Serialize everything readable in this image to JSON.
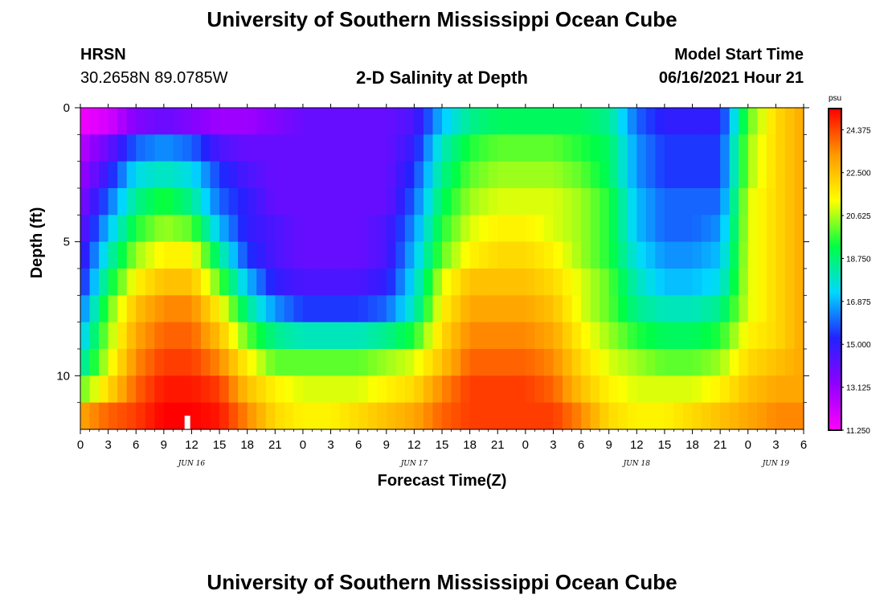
{
  "header": {
    "title": "University of Southern Mississippi Ocean Cube",
    "station_name": "HRSN",
    "coordinates": "30.2658N  89.0785W",
    "plot_title": "2-D Salinity at Depth",
    "model_start_label": "Model Start Time",
    "model_start_value": "06/16/2021 Hour 21"
  },
  "footer": {
    "title": "University of Southern Mississippi Ocean Cube"
  },
  "chart_data": {
    "type": "heatmap",
    "title": "2-D Salinity at Depth",
    "xlabel": "Forecast Time(Z)",
    "ylabel": "Depth (ft)",
    "x_unit": "hours since JUN 16 00Z",
    "xlim": [
      0,
      78
    ],
    "ylim": [
      0,
      12
    ],
    "y_inverted": true,
    "x_tick_values": [
      0,
      3,
      6,
      9,
      12,
      15,
      18,
      21,
      24,
      27,
      30,
      33,
      36,
      39,
      42,
      45,
      48,
      51,
      54,
      57,
      60,
      63,
      66,
      69,
      72,
      75,
      78
    ],
    "x_tick_labels": [
      "0",
      "3",
      "6",
      "9",
      "12",
      "15",
      "18",
      "21",
      "0",
      "3",
      "6",
      "9",
      "12",
      "15",
      "18",
      "21",
      "0",
      "3",
      "6",
      "9",
      "12",
      "15",
      "18",
      "21",
      "0",
      "3",
      "6"
    ],
    "y_tick_values": [
      0,
      5,
      10
    ],
    "y_tick_labels": [
      "0",
      "5",
      "10"
    ],
    "date_labels": [
      {
        "x": 12,
        "label": "JUN 16"
      },
      {
        "x": 36,
        "label": "JUN 17"
      },
      {
        "x": 60,
        "label": "JUN 18"
      },
      {
        "x": 75,
        "label": "JUN 19"
      }
    ],
    "now_marker_x": 11.5,
    "colorbar": {
      "unit": "psu",
      "min": 11.25,
      "max": 25.3,
      "labels": [
        "24.375",
        "22.500",
        "20.625",
        "18.750",
        "16.875",
        "15.000",
        "13.125",
        "11.250"
      ],
      "label_values": [
        24.375,
        22.5,
        20.625,
        18.75,
        16.875,
        15.0,
        13.125,
        11.25
      ],
      "colors": [
        "#ff00ff",
        "#9000ff",
        "#2222ff",
        "#00d8ff",
        "#00ff44",
        "#ffff00",
        "#ff9800",
        "#ff0000"
      ]
    },
    "depth_layers_ft": [
      0.5,
      1.5,
      2.5,
      3.5,
      4.5,
      5.5,
      6.5,
      7.5,
      8.5,
      9.5,
      10.5,
      11.5
    ],
    "key_times_h": [
      0,
      3,
      6,
      9,
      12,
      15,
      18,
      21,
      24,
      27,
      30,
      33,
      36,
      39,
      42,
      45,
      48,
      51,
      54,
      57,
      60,
      63,
      66,
      69,
      72,
      75,
      78
    ],
    "salinity_psu": [
      [
        11.5,
        12.0,
        13.5,
        14.0,
        13.5,
        13.0,
        13.0,
        13.5,
        14.0,
        14.0,
        14.0,
        14.0,
        14.5,
        17.0,
        18.5,
        19.0,
        19.0,
        19.0,
        19.0,
        18.5,
        16.0,
        15.0,
        15.0,
        15.0,
        20.0,
        22.0,
        23.0
      ],
      [
        12.5,
        14.0,
        16.0,
        16.5,
        16.0,
        14.5,
        14.0,
        14.0,
        14.0,
        14.0,
        14.0,
        14.0,
        15.0,
        18.0,
        19.5,
        20.0,
        20.0,
        20.0,
        19.5,
        19.0,
        16.5,
        15.5,
        15.5,
        15.5,
        20.5,
        22.0,
        23.0
      ],
      [
        13.0,
        15.0,
        17.5,
        18.0,
        17.5,
        15.5,
        14.5,
        14.0,
        14.0,
        14.0,
        14.0,
        14.0,
        15.5,
        18.5,
        20.0,
        20.5,
        20.5,
        20.5,
        20.0,
        19.0,
        16.5,
        15.5,
        15.5,
        15.5,
        20.5,
        22.0,
        23.0
      ],
      [
        13.5,
        16.0,
        18.5,
        19.5,
        18.5,
        16.0,
        15.0,
        14.0,
        14.0,
        14.0,
        14.0,
        14.0,
        16.0,
        19.0,
        20.5,
        21.0,
        21.0,
        21.0,
        20.5,
        19.5,
        17.0,
        16.0,
        16.0,
        16.0,
        21.0,
        22.0,
        23.0
      ],
      [
        14.0,
        17.0,
        19.5,
        20.5,
        20.0,
        17.0,
        15.0,
        14.5,
        14.0,
        14.0,
        14.0,
        14.5,
        16.5,
        19.5,
        21.0,
        21.5,
        21.5,
        21.0,
        20.5,
        19.5,
        17.0,
        16.0,
        16.0,
        16.5,
        21.0,
        22.0,
        23.0
      ],
      [
        14.5,
        18.0,
        20.5,
        21.5,
        21.5,
        18.5,
        15.5,
        14.5,
        14.0,
        14.0,
        14.0,
        14.5,
        17.0,
        20.0,
        21.5,
        22.0,
        22.0,
        21.5,
        20.5,
        19.5,
        17.5,
        16.5,
        16.5,
        17.0,
        21.0,
        22.0,
        23.0
      ],
      [
        15.0,
        19.0,
        21.5,
        22.5,
        22.5,
        20.0,
        17.0,
        15.0,
        14.5,
        14.5,
        14.5,
        15.0,
        17.5,
        21.0,
        22.5,
        22.5,
        22.5,
        22.0,
        21.0,
        20.0,
        18.0,
        17.0,
        17.0,
        17.5,
        21.0,
        22.0,
        23.0
      ],
      [
        16.0,
        20.0,
        22.5,
        23.5,
        23.5,
        21.5,
        18.5,
        16.5,
        15.5,
        15.5,
        15.5,
        16.0,
        18.0,
        21.5,
        23.0,
        23.0,
        23.0,
        22.5,
        21.0,
        20.0,
        18.5,
        18.0,
        18.0,
        18.5,
        21.0,
        22.0,
        23.0
      ],
      [
        17.0,
        20.5,
        23.0,
        24.0,
        24.0,
        22.5,
        20.0,
        18.5,
        18.0,
        18.0,
        18.0,
        18.5,
        19.5,
        22.0,
        23.5,
        23.5,
        23.5,
        23.0,
        21.5,
        20.5,
        19.5,
        19.0,
        19.0,
        19.5,
        21.5,
        22.0,
        23.0
      ],
      [
        18.0,
        21.0,
        23.5,
        24.5,
        24.5,
        23.5,
        21.5,
        20.0,
        20.0,
        20.0,
        20.0,
        20.5,
        21.0,
        22.5,
        24.0,
        24.0,
        24.0,
        23.5,
        22.0,
        21.0,
        20.5,
        20.0,
        20.0,
        20.5,
        22.0,
        22.5,
        23.0
      ],
      [
        20.0,
        22.0,
        24.0,
        25.0,
        25.0,
        24.5,
        22.5,
        21.5,
        21.0,
        21.0,
        21.0,
        21.5,
        22.0,
        23.5,
        24.5,
        24.5,
        24.5,
        24.0,
        22.5,
        21.5,
        21.0,
        21.0,
        21.0,
        21.5,
        22.5,
        23.0,
        23.0
      ],
      [
        23.0,
        24.0,
        24.5,
        25.3,
        25.3,
        25.0,
        23.5,
        22.0,
        21.5,
        21.5,
        22.0,
        22.5,
        23.0,
        24.0,
        24.5,
        24.5,
        24.5,
        24.5,
        23.5,
        22.0,
        21.5,
        21.5,
        22.0,
        22.5,
        23.0,
        23.5,
        23.5
      ]
    ]
  }
}
